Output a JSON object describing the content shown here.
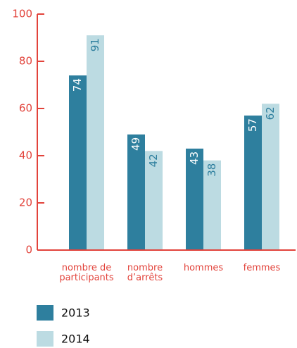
{
  "chart_data": {
    "type": "bar",
    "categories": [
      "nombre de\nparticipants",
      "nombre\nd’arrêts",
      "hommes",
      "femmes"
    ],
    "series": [
      {
        "name": "2013",
        "color": "#2e7f9e",
        "values": [
          74,
          49,
          43,
          57
        ]
      },
      {
        "name": "2014",
        "color": "#bcdbe2",
        "values": [
          91,
          42,
          38,
          62
        ]
      }
    ],
    "ylim": [
      0,
      100
    ],
    "yticks": [
      0,
      20,
      40,
      60,
      80,
      100
    ],
    "axis_color": "#e2433b"
  }
}
